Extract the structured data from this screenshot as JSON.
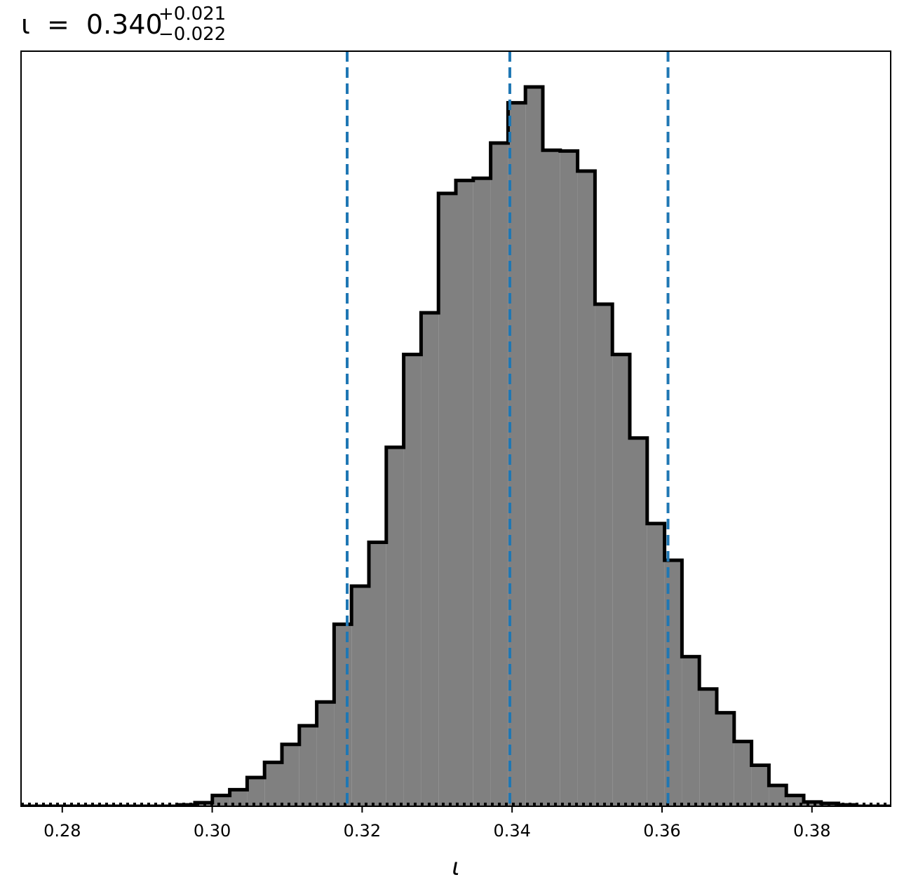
{
  "chart_data": {
    "type": "histogram",
    "title": {
      "symbol": "ι",
      "equals": "=",
      "value": "0.340",
      "upper_error": "+0.021",
      "lower_error": "−0.022"
    },
    "xlabel": "ι",
    "ylabel": "",
    "xlim": [
      0.2745,
      0.3905
    ],
    "ylim": [
      0,
      1.0
    ],
    "grid": false,
    "legend": "none",
    "xticks": [
      0.28,
      0.3,
      0.32,
      0.34,
      0.36,
      0.38
    ],
    "xtick_labels": [
      "0.28",
      "0.30",
      "0.32",
      "0.34",
      "0.36",
      "0.38"
    ],
    "bin_start": 0.2745,
    "bin_width": 0.00232,
    "bin_heights": [
      0.0,
      0.0,
      0.0,
      0.0,
      0.0,
      0.0,
      0.0,
      0.0,
      0.0,
      0.002,
      0.005,
      0.015,
      0.023,
      0.04,
      0.061,
      0.086,
      0.112,
      0.145,
      0.253,
      0.306,
      0.367,
      0.499,
      0.628,
      0.686,
      0.852,
      0.87,
      0.873,
      0.922,
      0.978,
      1.0,
      0.912,
      0.911,
      0.883,
      0.698,
      0.628,
      0.512,
      0.393,
      0.342,
      0.208,
      0.163,
      0.13,
      0.09,
      0.057,
      0.029,
      0.015,
      0.006,
      0.004,
      0.002,
      0.0,
      0.0
    ],
    "quantile_lines": [
      0.318,
      0.3397,
      0.3608
    ],
    "reference_line_level": 0.003,
    "colors": {
      "fill": "#808080",
      "outline": "#000000",
      "quantile": "#1f77b4",
      "reference": "#000000"
    }
  }
}
